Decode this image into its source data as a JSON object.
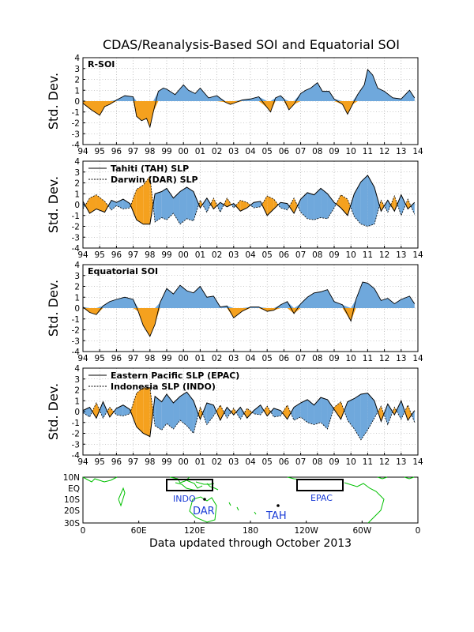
{
  "title": "CDAS/Reanalysis-Based SOI and Equatorial SOI",
  "footer": "Data updated through October 2013",
  "colors": {
    "positive": "#6fa8dc",
    "negative": "#f5a11e",
    "grid": "#9a9a9a",
    "land": "#00c000",
    "map_label": "#1a3cd6"
  },
  "chart_data": [
    {
      "type": "area",
      "label": "R-SOI",
      "ylabel": "Std. Dev.",
      "ylim": [
        -4,
        4
      ],
      "yticks": [
        "-4",
        "-3",
        "-2",
        "-1",
        "0",
        "1",
        "2",
        "3",
        "4"
      ],
      "xticks": [
        "94",
        "95",
        "96",
        "97",
        "98",
        "99",
        "00",
        "01",
        "02",
        "03",
        "04",
        "05",
        "06",
        "07",
        "08",
        "09",
        "10",
        "11",
        "12",
        "13",
        "14"
      ],
      "x_years": [
        1994.0,
        1994.5,
        1995.0,
        1995.3,
        1995.6,
        1996.0,
        1996.5,
        1997.0,
        1997.2,
        1997.5,
        1997.8,
        1998.0,
        1998.2,
        1998.5,
        1998.8,
        1999.0,
        1999.5,
        2000.0,
        2000.3,
        2000.7,
        2001.0,
        2001.5,
        2002.0,
        2002.5,
        2002.8,
        2003.0,
        2003.5,
        2004.0,
        2004.5,
        2005.0,
        2005.2,
        2005.5,
        2005.8,
        2006.0,
        2006.3,
        2006.6,
        2007.0,
        2007.3,
        2007.6,
        2008.0,
        2008.3,
        2008.7,
        2009.0,
        2009.5,
        2009.8,
        2010.1,
        2010.4,
        2010.8,
        2011.0,
        2011.3,
        2011.6,
        2012.0,
        2012.5,
        2013.0,
        2013.5,
        2013.8
      ],
      "y_values": [
        -0.2,
        -0.8,
        -1.3,
        -0.5,
        -0.3,
        0.1,
        0.5,
        0.4,
        -1.4,
        -1.8,
        -1.6,
        -2.4,
        -1.0,
        0.9,
        1.2,
        1.1,
        0.6,
        1.5,
        1.0,
        0.7,
        1.2,
        0.3,
        0.5,
        -0.1,
        -0.3,
        -0.2,
        0.1,
        0.2,
        0.4,
        -0.6,
        -1.0,
        0.3,
        0.5,
        0.2,
        -0.8,
        -0.3,
        0.7,
        1.0,
        1.2,
        1.7,
        0.9,
        0.9,
        0.2,
        -0.3,
        -1.2,
        -0.3,
        0.6,
        1.5,
        2.9,
        2.4,
        1.2,
        0.9,
        0.3,
        0.2,
        1.0,
        0.3
      ],
      "legend": []
    },
    {
      "type": "area",
      "label": "",
      "ylabel": "Std. Dev.",
      "ylim": [
        -4,
        4
      ],
      "yticks": [
        "-4",
        "-3",
        "-2",
        "-1",
        "0",
        "1",
        "2",
        "3",
        "4"
      ],
      "xticks": [
        "94",
        "95",
        "96",
        "97",
        "98",
        "99",
        "00",
        "01",
        "02",
        "03",
        "04",
        "05",
        "06",
        "07",
        "08",
        "09",
        "10",
        "11",
        "12",
        "13",
        "14"
      ],
      "x_years": [
        1994.0,
        1994.4,
        1994.8,
        1995.3,
        1995.7,
        1996.0,
        1996.4,
        1996.8,
        1997.2,
        1997.6,
        1998.0,
        1998.3,
        1998.7,
        1999.0,
        1999.4,
        1999.8,
        2000.2,
        2000.6,
        2001.0,
        2001.4,
        2001.8,
        2002.2,
        2002.6,
        2003.0,
        2003.4,
        2003.8,
        2004.2,
        2004.6,
        2005.0,
        2005.4,
        2005.8,
        2006.2,
        2006.6,
        2007.0,
        2007.4,
        2007.8,
        2008.2,
        2008.6,
        2009.0,
        2009.4,
        2009.8,
        2010.2,
        2010.6,
        2011.0,
        2011.4,
        2011.8,
        2012.2,
        2012.6,
        2013.0,
        2013.4,
        2013.8
      ],
      "series": [
        {
          "name": "Tahiti (TAH) SLP",
          "values": [
            0.3,
            -0.8,
            -0.4,
            -0.7,
            0.4,
            0.2,
            0.5,
            0.1,
            -1.4,
            -1.8,
            -1.8,
            1.0,
            1.2,
            1.5,
            0.6,
            1.2,
            1.6,
            1.2,
            -0.3,
            0.6,
            -0.4,
            0.2,
            -0.2,
            0.1,
            -0.6,
            -0.3,
            0.2,
            0.3,
            -1.0,
            -0.4,
            0.2,
            0.1,
            -0.8,
            0.5,
            1.1,
            0.9,
            1.5,
            1.0,
            0.2,
            -0.3,
            -1.0,
            1.0,
            2.1,
            2.7,
            1.6,
            -0.6,
            0.4,
            -0.6,
            0.9,
            -0.4,
            0.2
          ]
        },
        {
          "name": "Darwin (DAR) SLP",
          "values": [
            -0.4,
            0.6,
            0.9,
            0.3,
            -0.5,
            -0.1,
            -0.4,
            -0.3,
            1.4,
            1.8,
            2.6,
            -1.6,
            -1.2,
            -1.4,
            -0.8,
            -1.8,
            -1.3,
            -1.5,
            0.4,
            -0.7,
            0.6,
            -0.7,
            0.6,
            -0.3,
            0.4,
            0.2,
            -0.3,
            -0.2,
            0.8,
            0.5,
            -0.3,
            -0.5,
            0.6,
            -0.7,
            -1.3,
            -1.4,
            -1.2,
            -1.3,
            -0.3,
            0.9,
            0.5,
            -1.1,
            -1.8,
            -2.0,
            -1.8,
            0.4,
            -0.7,
            0.8,
            -1.0,
            0.5,
            -0.9
          ]
        }
      ]
    },
    {
      "type": "area",
      "label": "Equatorial SOI",
      "ylabel": "Std. Dev.",
      "ylim": [
        -4,
        4
      ],
      "yticks": [
        "-4",
        "-3",
        "-2",
        "-1",
        "0",
        "1",
        "2",
        "3",
        "4"
      ],
      "xticks": [
        "94",
        "95",
        "96",
        "97",
        "98",
        "99",
        "00",
        "01",
        "02",
        "03",
        "04",
        "05",
        "06",
        "07",
        "08",
        "09",
        "10",
        "11",
        "12",
        "13",
        "14"
      ],
      "x_years": [
        1994.0,
        1994.4,
        1994.8,
        1995.2,
        1995.6,
        1996.0,
        1996.5,
        1997.0,
        1997.3,
        1997.6,
        1998.0,
        1998.3,
        1998.6,
        1999.0,
        1999.4,
        1999.8,
        2000.2,
        2000.6,
        2001.0,
        2001.4,
        2001.8,
        2002.2,
        2002.6,
        2003.0,
        2003.5,
        2004.0,
        2004.5,
        2005.0,
        2005.4,
        2005.8,
        2006.2,
        2006.6,
        2007.0,
        2007.4,
        2007.8,
        2008.2,
        2008.6,
        2009.0,
        2009.5,
        2010.0,
        2010.3,
        2010.7,
        2011.0,
        2011.4,
        2011.8,
        2012.2,
        2012.6,
        2013.0,
        2013.5,
        2013.8
      ],
      "y_values": [
        0.1,
        -0.4,
        -0.6,
        0.2,
        0.6,
        0.8,
        1.0,
        0.8,
        -0.3,
        -1.6,
        -2.6,
        -1.5,
        0.5,
        1.8,
        1.3,
        2.1,
        1.6,
        1.4,
        2.0,
        1.0,
        1.1,
        0.1,
        0.2,
        -0.9,
        -0.3,
        0.1,
        0.1,
        -0.3,
        -0.2,
        0.3,
        0.6,
        -0.5,
        0.4,
        1.0,
        1.4,
        1.5,
        1.7,
        0.6,
        0.3,
        -1.2,
        0.8,
        2.4,
        2.3,
        1.8,
        0.7,
        0.9,
        0.4,
        0.8,
        1.1,
        0.4
      ],
      "legend": []
    },
    {
      "type": "area",
      "label": "",
      "ylabel": "Std. Dev.",
      "ylim": [
        -4,
        4
      ],
      "yticks": [
        "-4",
        "-3",
        "-2",
        "-1",
        "0",
        "1",
        "2",
        "3",
        "4"
      ],
      "xticks": [
        "94",
        "95",
        "96",
        "97",
        "98",
        "99",
        "00",
        "01",
        "02",
        "03",
        "04",
        "05",
        "06",
        "07",
        "08",
        "09",
        "10",
        "11",
        "12",
        "13",
        "14"
      ],
      "x_years": [
        1994.0,
        1994.4,
        1994.8,
        1995.2,
        1995.6,
        1996.0,
        1996.4,
        1996.8,
        1997.2,
        1997.6,
        1998.0,
        1998.3,
        1998.7,
        1999.0,
        1999.4,
        1999.8,
        2000.2,
        2000.6,
        2001.0,
        2001.4,
        2001.8,
        2002.2,
        2002.6,
        2003.0,
        2003.4,
        2003.8,
        2004.2,
        2004.6,
        2005.0,
        2005.4,
        2005.8,
        2006.2,
        2006.6,
        2007.0,
        2007.4,
        2007.8,
        2008.2,
        2008.6,
        2009.0,
        2009.4,
        2009.8,
        2010.2,
        2010.6,
        2011.0,
        2011.4,
        2011.8,
        2012.2,
        2012.6,
        2013.0,
        2013.4,
        2013.8
      ],
      "series": [
        {
          "name": "Eastern Pacific SLP (EPAC)",
          "values": [
            0.1,
            0.4,
            -0.6,
            0.9,
            -0.5,
            0.3,
            0.6,
            0.2,
            -1.4,
            -2.0,
            -2.3,
            1.4,
            0.9,
            1.6,
            0.8,
            1.4,
            1.8,
            1.0,
            -0.7,
            0.8,
            0.6,
            -0.8,
            0.4,
            -0.3,
            0.4,
            -0.6,
            0.1,
            0.6,
            -0.4,
            0.3,
            0.1,
            -0.7,
            0.4,
            0.8,
            1.1,
            0.6,
            1.3,
            1.1,
            0.2,
            -0.7,
            0.9,
            1.2,
            1.6,
            1.7,
            1.0,
            -0.9,
            0.7,
            -0.3,
            1.0,
            -0.8,
            0.1
          ]
        },
        {
          "name": "Indonesia SLP (INDO)",
          "values": [
            -0.1,
            -0.5,
            0.8,
            -0.6,
            0.4,
            -0.3,
            -0.4,
            -0.2,
            1.7,
            2.2,
            2.2,
            -1.3,
            -1.7,
            -1.1,
            -1.6,
            -0.8,
            -1.3,
            -2.0,
            0.4,
            -1.2,
            -0.4,
            0.6,
            -0.6,
            0.3,
            -0.7,
            0.3,
            -0.2,
            -0.3,
            0.5,
            -0.5,
            -0.4,
            0.6,
            -0.8,
            -0.5,
            -1.0,
            -1.2,
            -1.0,
            -1.6,
            0.4,
            0.9,
            -0.8,
            -1.6,
            -2.6,
            -1.7,
            -0.6,
            0.5,
            -1.2,
            0.4,
            -0.7,
            0.6,
            -1.0
          ]
        }
      ]
    }
  ],
  "map": {
    "lat_ticks": [
      "10N",
      "EQ",
      "10S",
      "20S",
      "30S"
    ],
    "lon_ticks": [
      "0",
      "60E",
      "120E",
      "180",
      "120W",
      "60W",
      "0"
    ],
    "labels": {
      "indo": "INDO",
      "dar": "DAR",
      "tah": "TAH",
      "epac": "EPAC"
    }
  }
}
